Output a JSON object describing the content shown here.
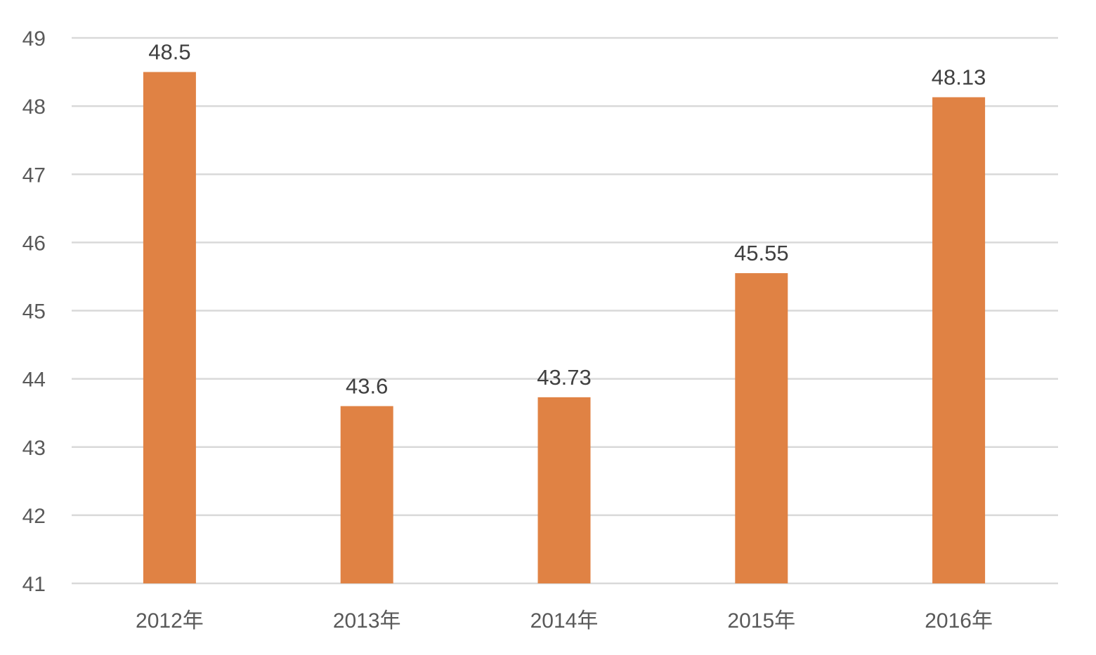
{
  "chart_data": {
    "type": "bar",
    "categories": [
      "2012年",
      "2013年",
      "2014年",
      "2015年",
      "2016年"
    ],
    "values": [
      48.5,
      43.6,
      43.73,
      45.55,
      48.13
    ],
    "data_labels": [
      "48.5",
      "43.6",
      "43.73",
      "45.55",
      "48.13"
    ],
    "y_ticks": [
      "41",
      "42",
      "43",
      "44",
      "45",
      "46",
      "47",
      "48",
      "49"
    ],
    "ylim": [
      41,
      49
    ],
    "title": "",
    "xlabel": "",
    "ylabel": "",
    "grid": true,
    "legend": "none",
    "colors": {
      "bar": "#E08244",
      "grid": "#D9D9D9",
      "tick_text": "#595959",
      "label_text": "#404040"
    }
  }
}
